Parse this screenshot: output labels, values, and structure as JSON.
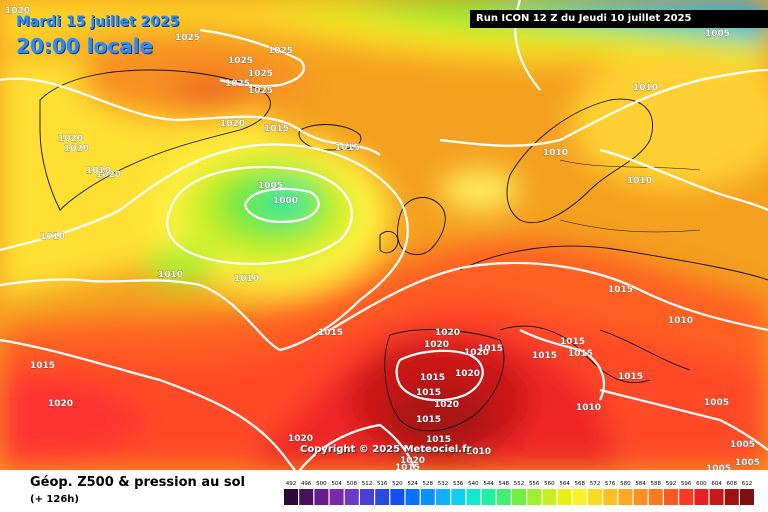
{
  "header": {
    "date": "Mardi 15 juillet 2025",
    "time": "20:00 locale",
    "run": "Run ICON 12 Z du Jeudi 10 juillet 2025"
  },
  "footer": {
    "title": "Géop. Z500 & pression au sol",
    "subtitle": "(+ 126h)"
  },
  "copyright": "Copyright © 2025 Meteociel.fr",
  "isobars": [
    "1020",
    "1025",
    "1025",
    "1025",
    "1025",
    "1025",
    "1025",
    "1020",
    "1020",
    "1020",
    "1020",
    "1015",
    "1015",
    "1010",
    "1010",
    "1010",
    "1005",
    "1005",
    "1000",
    "1010",
    "1010",
    "1010",
    "1010",
    "1015",
    "1015",
    "1015",
    "1015",
    "1015",
    "1015",
    "1015",
    "1020",
    "1020",
    "1020",
    "1015",
    "1020",
    "1015",
    "1020",
    "1015",
    "1015",
    "1020",
    "1010",
    "1010",
    "1005",
    "1005",
    "1005",
    "1005",
    "1020",
    "1020",
    "1015",
    "1015",
    "1010"
  ],
  "legend": {
    "values": [
      "492",
      "496",
      "500",
      "504",
      "508",
      "512",
      "516",
      "520",
      "524",
      "528",
      "532",
      "536",
      "540",
      "544",
      "548",
      "552",
      "556",
      "560",
      "564",
      "568",
      "572",
      "576",
      "580",
      "584",
      "588",
      "592",
      "596",
      "600",
      "604",
      "608",
      "612"
    ],
    "colors": [
      "#2a0a3a",
      "#4a1060",
      "#6a1a8a",
      "#7a2aa8",
      "#6a3ac8",
      "#4a40d8",
      "#2a48e8",
      "#1050f0",
      "#0a70ff",
      "#0a90ff",
      "#10b0ff",
      "#10d0f0",
      "#10e8d0",
      "#20f0a0",
      "#40f070",
      "#70f040",
      "#a0f030",
      "#c8f020",
      "#e8f010",
      "#fff020",
      "#ffd820",
      "#ffc020",
      "#ffa820",
      "#ff9020",
      "#ff7820",
      "#ff5820",
      "#ff3820",
      "#e82020",
      "#c81818",
      "#a01010",
      "#801010"
    ]
  }
}
